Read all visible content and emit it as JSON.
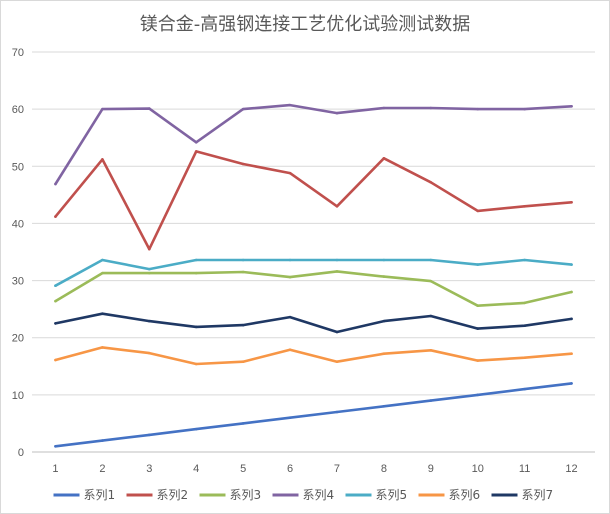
{
  "chart_data": {
    "type": "line",
    "title": "镁合金-高强钢连接工艺优化试验测试数据",
    "categories": [
      "1",
      "2",
      "3",
      "4",
      "5",
      "6",
      "7",
      "8",
      "9",
      "10",
      "11",
      "12"
    ],
    "y_ticks": [
      "0",
      "10",
      "20",
      "30",
      "40",
      "50",
      "60",
      "70"
    ],
    "ylim": [
      0,
      70
    ],
    "grid": true,
    "legend_position": "bottom",
    "series": [
      {
        "name": "系列1",
        "color": "#4472C4",
        "values": [
          1,
          2,
          3,
          4,
          5,
          6,
          7,
          8,
          9,
          10,
          11,
          12
        ]
      },
      {
        "name": "系列2",
        "color": "#C0504D",
        "values": [
          41.2,
          51.2,
          35.5,
          52.6,
          50.4,
          48.8,
          43.0,
          51.4,
          47.2,
          42.2,
          43.0,
          43.7
        ]
      },
      {
        "name": "系列3",
        "color": "#9BBB59",
        "values": [
          26.4,
          31.3,
          31.3,
          31.3,
          31.5,
          30.6,
          31.6,
          30.7,
          29.9,
          25.6,
          26.1,
          28.0
        ]
      },
      {
        "name": "系列4",
        "color": "#8064A2",
        "values": [
          46.9,
          60.0,
          60.1,
          54.2,
          60.0,
          60.7,
          59.3,
          60.2,
          60.2,
          60.0,
          60.0,
          60.5
        ]
      },
      {
        "name": "系列5",
        "color": "#4BACC6",
        "values": [
          29.1,
          33.6,
          32.0,
          33.6,
          33.6,
          33.6,
          33.6,
          33.6,
          33.6,
          32.8,
          33.6,
          32.8
        ]
      },
      {
        "name": "系列6",
        "color": "#F79646",
        "values": [
          16.1,
          18.3,
          17.3,
          15.4,
          15.8,
          17.9,
          15.8,
          17.2,
          17.8,
          16.0,
          16.5,
          17.2
        ]
      },
      {
        "name": "系列7",
        "color": "#1F3864",
        "values": [
          22.5,
          24.2,
          22.9,
          21.9,
          22.2,
          23.6,
          21.0,
          22.9,
          23.8,
          21.6,
          22.1,
          23.3
        ]
      }
    ]
  }
}
